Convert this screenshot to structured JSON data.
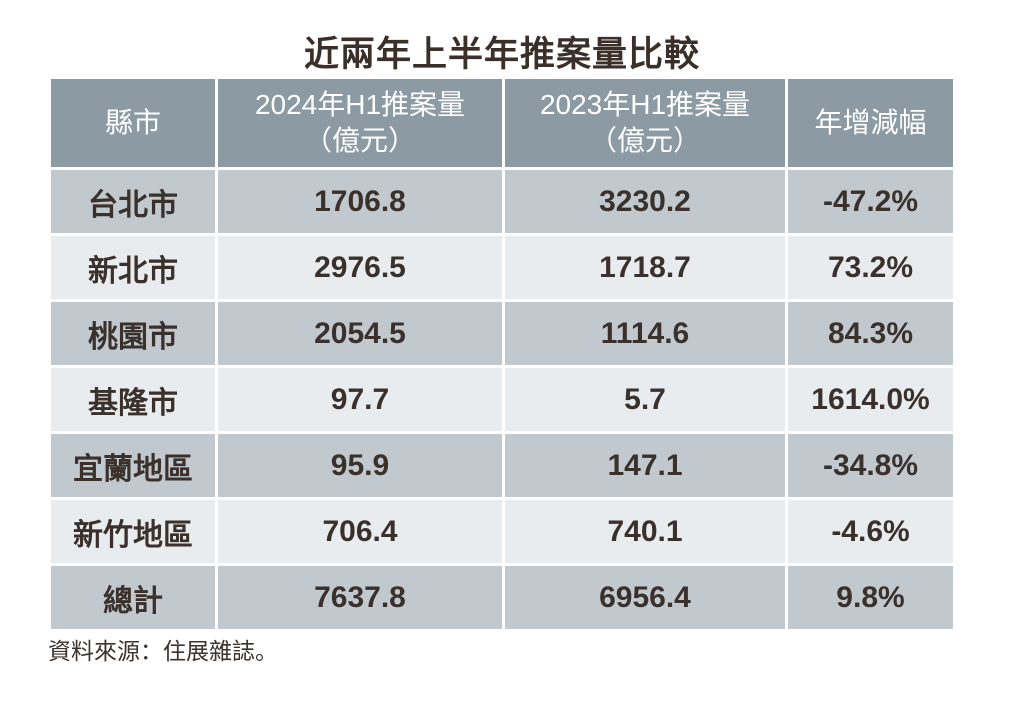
{
  "title": "近兩年上半年推案量比較",
  "table": {
    "headers": {
      "city": "縣市",
      "h1_2024": "2024年H1推案量\n（億元）",
      "h1_2023": "2023年H1推案量\n（億元）",
      "yoy": "年增減幅"
    },
    "rows": [
      {
        "city": "台北市",
        "v2024": "1706.8",
        "v2023": "3230.2",
        "yoy": "-47.2%"
      },
      {
        "city": "新北市",
        "v2024": "2976.5",
        "v2023": "1718.7",
        "yoy": "73.2%"
      },
      {
        "city": "桃園市",
        "v2024": "2054.5",
        "v2023": "1114.6",
        "yoy": "84.3%"
      },
      {
        "city": "基隆市",
        "v2024": "97.7",
        "v2023": "5.7",
        "yoy": "1614.0%"
      },
      {
        "city": "宜蘭地區",
        "v2024": "95.9",
        "v2023": "147.1",
        "yoy": "-34.8%"
      },
      {
        "city": "新竹地區",
        "v2024": "706.4",
        "v2023": "740.1",
        "yoy": "-4.6%"
      },
      {
        "city": "總計",
        "v2024": "7637.8",
        "v2023": "6956.4",
        "yoy": "9.8%"
      }
    ]
  },
  "source": "資料來源：住展雜誌。",
  "colors": {
    "header_bg": "#8b9aa3",
    "row_dark_bg": "#c2c9ce",
    "row_light_bg": "#e9ecee",
    "header_text": "#ffffff",
    "body_text": "#3a312c",
    "title_text": "#3a2f29"
  },
  "chart_data": {
    "type": "table",
    "title": "近兩年上半年推案量比較",
    "columns": [
      "縣市",
      "2024年H1推案量（億元）",
      "2023年H1推案量（億元）",
      "年增減幅"
    ],
    "rows": [
      [
        "台北市",
        1706.8,
        3230.2,
        "-47.2%"
      ],
      [
        "新北市",
        2976.5,
        1718.7,
        "73.2%"
      ],
      [
        "桃園市",
        2054.5,
        1114.6,
        "84.3%"
      ],
      [
        "基隆市",
        97.7,
        5.7,
        "1614.0%"
      ],
      [
        "宜蘭地區",
        95.9,
        147.1,
        "-34.8%"
      ],
      [
        "新竹地區",
        706.4,
        740.1,
        "-4.6%"
      ],
      [
        "總計",
        7637.8,
        6956.4,
        "9.8%"
      ]
    ],
    "source": "資料來源：住展雜誌。"
  }
}
